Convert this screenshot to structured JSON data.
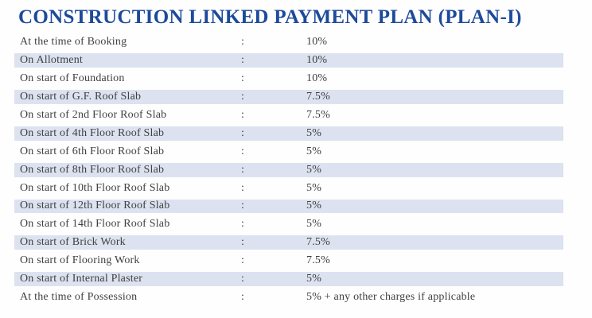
{
  "page": {
    "title": "CONSTRUCTION LINKED PAYMENT PLAN (PLAN-I)",
    "colors": {
      "title": "#1d4a9b",
      "row_shade": "#dce2ef",
      "text": "#404040",
      "background": "#fefefe"
    }
  },
  "payment_plan": {
    "separator": ":",
    "rows": [
      {
        "milestone": "At the time of Booking",
        "payment": "10%",
        "shaded": false
      },
      {
        "milestone": "On Allotment",
        "payment": "10%",
        "shaded": true
      },
      {
        "milestone": "On start of Foundation",
        "payment": "10%",
        "shaded": false
      },
      {
        "milestone": "On start of G.F. Roof Slab",
        "payment": "7.5%",
        "shaded": true
      },
      {
        "milestone": "On start of 2nd Floor Roof Slab",
        "payment": "7.5%",
        "shaded": false
      },
      {
        "milestone": "On start of 4th Floor Roof Slab",
        "payment": "5%",
        "shaded": true
      },
      {
        "milestone": "On start of 6th Floor Roof Slab",
        "payment": "5%",
        "shaded": false
      },
      {
        "milestone": "On start of 8th Floor Roof Slab",
        "payment": "5%",
        "shaded": true
      },
      {
        "milestone": "On start of 10th Floor Roof Slab",
        "payment": "5%",
        "shaded": false
      },
      {
        "milestone": "On start of 12th Floor Roof Slab",
        "payment": "5%",
        "shaded": true
      },
      {
        "milestone": "On start of 14th Floor Roof Slab",
        "payment": "5%",
        "shaded": false
      },
      {
        "milestone": "On start of Brick Work",
        "payment": "7.5%",
        "shaded": true
      },
      {
        "milestone": "On start of Flooring Work",
        "payment": "7.5%",
        "shaded": false
      },
      {
        "milestone": "On start of Internal Plaster",
        "payment": "5%",
        "shaded": true
      },
      {
        "milestone": "At the time of Possession",
        "payment": "5% + any other charges if applicable",
        "shaded": false
      }
    ]
  }
}
